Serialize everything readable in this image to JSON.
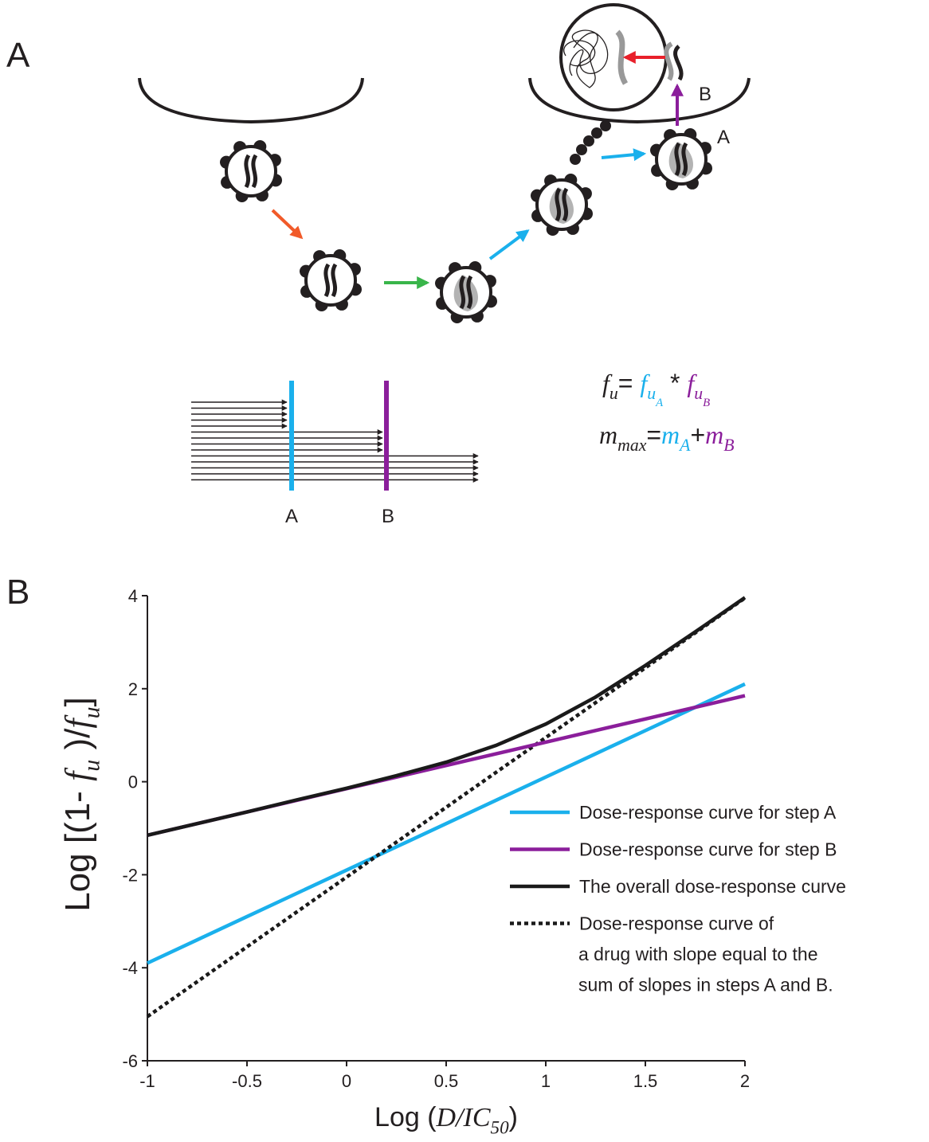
{
  "panel_a": {
    "label": "A",
    "step_a": "A",
    "step_b": "B",
    "bar_a": "A",
    "bar_b": "B",
    "color_a": "#1ab0ec",
    "color_b": "#8b1e9b",
    "formula_1": [
      {
        "text": "f",
        "italic": true,
        "level": 0,
        "color": "#231f20"
      },
      {
        "text": "u",
        "italic": true,
        "level": 1,
        "color": "#231f20"
      },
      {
        "text": "= ",
        "italic": false,
        "level": 0,
        "color": "#231f20"
      },
      {
        "text": "f",
        "italic": true,
        "level": 0,
        "color": "#1ab0ec"
      },
      {
        "text": "u",
        "italic": true,
        "level": 1,
        "color": "#1ab0ec"
      },
      {
        "text": "A",
        "italic": true,
        "level": 2,
        "color": "#1ab0ec"
      },
      {
        "text": " * ",
        "italic": false,
        "level": 0,
        "color": "#231f20"
      },
      {
        "text": "f",
        "italic": true,
        "level": 0,
        "color": "#8b1e9b"
      },
      {
        "text": "u",
        "italic": true,
        "level": 1,
        "color": "#8b1e9b"
      },
      {
        "text": "B",
        "italic": true,
        "level": 2,
        "color": "#8b1e9b"
      }
    ],
    "formula_2": [
      {
        "text": "m",
        "italic": true,
        "level": 0,
        "color": "#231f20"
      },
      {
        "text": "max",
        "italic": true,
        "level": 1,
        "color": "#231f20"
      },
      {
        "text": "=",
        "italic": false,
        "level": 0,
        "color": "#231f20"
      },
      {
        "text": "m",
        "italic": true,
        "level": 0,
        "color": "#1ab0ec"
      },
      {
        "text": "A",
        "italic": true,
        "level": 1,
        "color": "#1ab0ec"
      },
      {
        "text": "+",
        "italic": false,
        "level": 0,
        "color": "#231f20"
      },
      {
        "text": "m",
        "italic": true,
        "level": 0,
        "color": "#8b1e9b"
      },
      {
        "text": "B",
        "italic": true,
        "level": 1,
        "color": "#8b1e9b"
      }
    ]
  },
  "chart_data": {
    "type": "line",
    "panel_label": "B",
    "xlabel": [
      {
        "text": "Log (",
        "italic": false,
        "level": 0
      },
      {
        "text": "D/IC",
        "italic": true,
        "level": 0
      },
      {
        "text": "50",
        "italic": true,
        "level": 1
      },
      {
        "text": ")",
        "italic": false,
        "level": 0
      }
    ],
    "ylabel": [
      {
        "text": "Log [(1- ",
        "italic": false,
        "level": 0
      },
      {
        "text": "f",
        "italic": true,
        "level": 0
      },
      {
        "text": "u",
        "italic": true,
        "level": 1
      },
      {
        "text": " )/",
        "italic": false,
        "level": 0
      },
      {
        "text": "f",
        "italic": true,
        "level": 0
      },
      {
        "text": "u",
        "italic": true,
        "level": 1
      },
      {
        "text": "]",
        "italic": false,
        "level": 0
      }
    ],
    "x": [
      -1,
      -0.75,
      -0.5,
      -0.25,
      0,
      0.25,
      0.5,
      0.75,
      1,
      1.25,
      1.5,
      1.75,
      2
    ],
    "xlim": [
      -1,
      2
    ],
    "ylim": [
      -6,
      4
    ],
    "xticks": [
      -1,
      -0.5,
      0,
      0.5,
      1,
      1.5,
      2
    ],
    "yticks": [
      4,
      2,
      0,
      -2,
      -4,
      -6
    ],
    "legend": "lower right",
    "series": [
      {
        "name": "Dose-response curve for step A",
        "color": "#1ab0ec",
        "dash": "solid",
        "values": [
          -3.9,
          -3.4,
          -2.9,
          -2.4,
          -1.9,
          -1.4,
          -0.9,
          -0.4,
          0.1,
          0.6,
          1.1,
          1.6,
          2.1
        ]
      },
      {
        "name": "Dose-response curve for step B",
        "color": "#8b1e9b",
        "dash": "solid",
        "values": [
          -1.15,
          -0.9,
          -0.65,
          -0.4,
          -0.15,
          0.1,
          0.35,
          0.6,
          0.85,
          1.1,
          1.35,
          1.6,
          1.85
        ]
      },
      {
        "name": "The overall dose-response curve",
        "color": "#1a1a1a",
        "dash": "solid",
        "values": [
          -1.15,
          -0.9,
          -0.65,
          -0.39,
          -0.14,
          0.13,
          0.42,
          0.78,
          1.24,
          1.82,
          2.5,
          3.22,
          3.96
        ]
      },
      {
        "name": [
          "Dose-response curve of",
          "a drug with slope equal to the",
          "sum of slopes in steps A and B."
        ],
        "color": "#1a1a1a",
        "dash": "dotted",
        "values": [
          -5.05,
          -4.3,
          -3.55,
          -2.8,
          -2.05,
          -1.3,
          -0.55,
          0.2,
          0.95,
          1.7,
          2.45,
          3.2,
          3.95
        ]
      }
    ]
  }
}
